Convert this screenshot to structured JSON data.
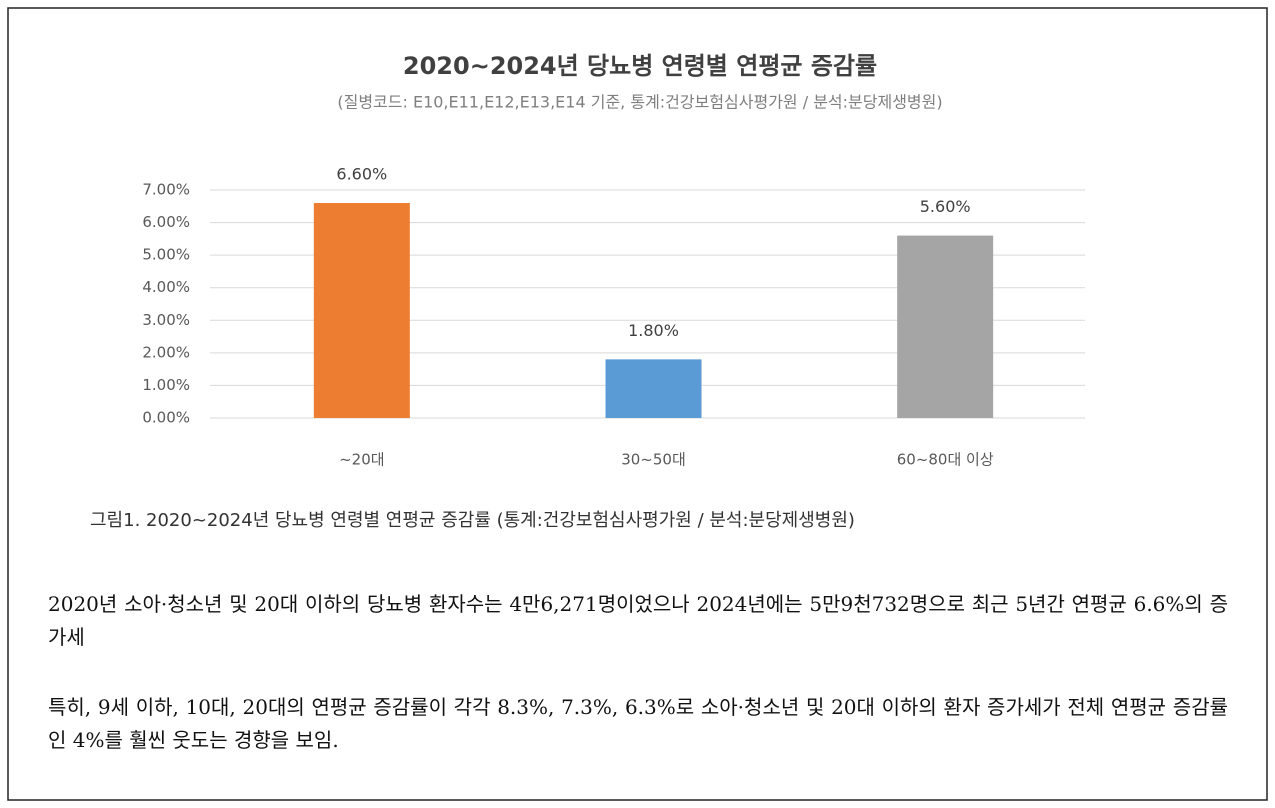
{
  "chart_data": {
    "type": "bar",
    "title": "2020~2024년 당뇨병 연령별 연평균 증감률",
    "subtitle": "(질병코드: E10,E11,E12,E13,E14 기준, 통계:건강보험심사평가원 / 분석:분당제생병원)",
    "categories": [
      "~20대",
      "30~50대",
      "60~80대 이상"
    ],
    "values": [
      6.6,
      1.8,
      5.6
    ],
    "value_labels": [
      "6.60%",
      "1.80%",
      "5.60%"
    ],
    "colors": [
      "#ed7d31",
      "#5b9bd5",
      "#a5a5a5"
    ],
    "ylim": [
      0,
      7
    ],
    "yticks": [
      {
        "value": 0,
        "label": "0.00%"
      },
      {
        "value": 1,
        "label": "1.00%"
      },
      {
        "value": 2,
        "label": "2.00%"
      },
      {
        "value": 3,
        "label": "3.00%"
      },
      {
        "value": 4,
        "label": "4.00%"
      },
      {
        "value": 5,
        "label": "5.00%"
      },
      {
        "value": 6,
        "label": "6.00%"
      },
      {
        "value": 7,
        "label": "7.00%"
      }
    ],
    "grid": true
  },
  "caption": "그림1. 2020~2024년 당뇨병 연령별 연평균 증감률 (통계:건강보험심사평가원 / 분석:분당제생병원)",
  "paragraphs": [
    "2020년 소아·청소년 및 20대 이하의 당뇨병 환자수는 4만6,271명이었으나 2024년에는 5만9천732명으로 최근 5년간 연평균 6.6%의 증가세",
    "특히, 9세 이하, 10대, 20대의 연평균 증감률이 각각 8.3%, 7.3%, 6.3%로 소아·청소년 및 20대 이하의 환자 증가세가 전체 연평균 증감률인 4%를 훨씬 웃도는 경향을 보임."
  ]
}
